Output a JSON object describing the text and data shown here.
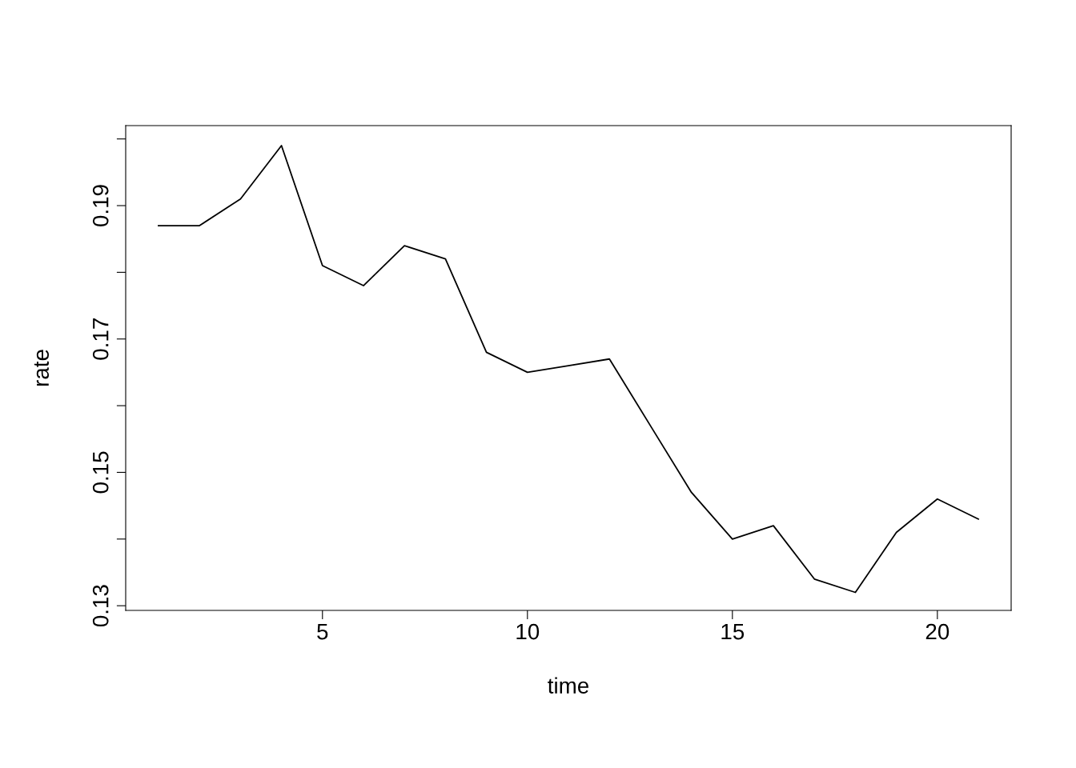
{
  "chart_data": {
    "type": "line",
    "xlabel": "time",
    "ylabel": "rate",
    "x": [
      1,
      2,
      3,
      4,
      5,
      6,
      7,
      8,
      9,
      10,
      11,
      12,
      13,
      14,
      15,
      16,
      17,
      18,
      19,
      20,
      21
    ],
    "series": [
      {
        "color": "#000000",
        "values": [
          0.187,
          0.187,
          0.191,
          0.199,
          0.181,
          0.178,
          0.184,
          0.182,
          0.168,
          0.165,
          0.166,
          0.167,
          0.157,
          0.147,
          0.14,
          0.142,
          0.134,
          0.132,
          0.141,
          0.146,
          0.143
        ]
      }
    ],
    "xlim": [
      0.2,
      21.8
    ],
    "xticks": [
      5,
      10,
      15,
      20
    ],
    "ylim": [
      0.1293,
      0.202
    ],
    "yticks": [
      0.13,
      {
        "value": 0.14,
        "label": null
      },
      0.15,
      {
        "value": 0.16,
        "label": null
      },
      0.17,
      {
        "value": 0.18,
        "label": null
      },
      0.19,
      {
        "value": 0.2,
        "label": null
      }
    ],
    "grid": false,
    "legend": false,
    "marker": "none",
    "line_style": "solid"
  }
}
